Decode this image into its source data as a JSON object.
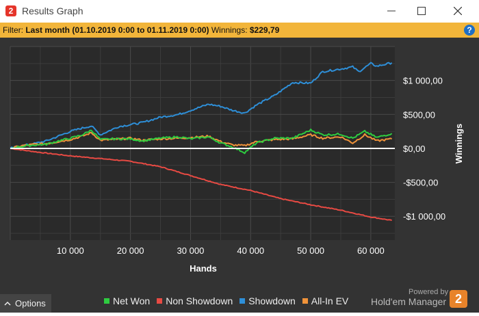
{
  "window": {
    "title": "Results Graph",
    "app_icon": "hm2-logo",
    "controls": [
      "minimize-icon",
      "maximize-icon",
      "close-icon"
    ]
  },
  "filter": {
    "label": "Filter:",
    "value": "Last month (01.10.2019 0:00 to 01.11.2019 0:00)",
    "winnings_label": "Winnings:",
    "winnings_value": "$229,79",
    "help_icon": "question-icon",
    "background": "#f2b53a"
  },
  "chart_data": {
    "type": "line",
    "xlabel": "Hands",
    "ylabel": "Winnings",
    "xlim": [
      0,
      64000
    ],
    "ylim": [
      -1350,
      1500
    ],
    "x_ticks": [
      10000,
      20000,
      30000,
      40000,
      50000,
      60000
    ],
    "x_tick_labels": [
      "10 000",
      "20 000",
      "30 000",
      "40 000",
      "50 000",
      "60 000"
    ],
    "y_ticks": [
      1000,
      500,
      0,
      -500,
      -1000
    ],
    "y_tick_labels": [
      "$1 000,00",
      "$500,00",
      "$0,00",
      "-$500,00",
      "-$1 000,00"
    ],
    "grid": true,
    "legend_position": "bottom",
    "series": [
      {
        "name": "Net Won",
        "color": "#2ecc40",
        "x": [
          0,
          2000,
          4000,
          6000,
          8000,
          10000,
          12000,
          13500,
          15000,
          17000,
          20000,
          22000,
          25000,
          28000,
          30000,
          33000,
          35000,
          37000,
          39000,
          41000,
          44000,
          47000,
          50000,
          52000,
          55000,
          57000,
          59000,
          61000,
          63500
        ],
        "values": [
          0,
          30,
          50,
          60,
          110,
          150,
          200,
          270,
          130,
          140,
          140,
          110,
          150,
          170,
          140,
          170,
          80,
          20,
          -60,
          80,
          150,
          150,
          270,
          200,
          210,
          150,
          250,
          160,
          220
        ]
      },
      {
        "name": "Non Showdown",
        "color": "#e84a43",
        "x": [
          0,
          5000,
          10000,
          15000,
          20000,
          25000,
          30000,
          35000,
          40000,
          45000,
          50000,
          55000,
          60000,
          63500
        ],
        "values": [
          0,
          -60,
          -110,
          -150,
          -190,
          -270,
          -400,
          -530,
          -620,
          -740,
          -830,
          -910,
          -1010,
          -1060
        ]
      },
      {
        "name": "Showdown",
        "color": "#2e8fd8",
        "x": [
          0,
          2000,
          4000,
          6000,
          8000,
          10000,
          12000,
          13500,
          15000,
          18000,
          20000,
          22000,
          25000,
          28000,
          30000,
          33000,
          35000,
          37000,
          39000,
          41000,
          44000,
          47000,
          50000,
          52000,
          55000,
          57000,
          58000,
          60000,
          61000,
          63500
        ],
        "values": [
          0,
          40,
          70,
          110,
          180,
          250,
          300,
          330,
          200,
          320,
          350,
          380,
          460,
          500,
          560,
          650,
          620,
          560,
          520,
          640,
          780,
          970,
          960,
          1130,
          1170,
          1200,
          1130,
          1250,
          1210,
          1260
        ]
      },
      {
        "name": "All-In EV",
        "color": "#f0933a",
        "x": [
          0,
          2000,
          4000,
          6000,
          8000,
          10000,
          12000,
          13500,
          15000,
          17000,
          20000,
          22000,
          25000,
          28000,
          30000,
          33000,
          35000,
          37000,
          39000,
          41000,
          44000,
          47000,
          50000,
          52000,
          55000,
          57000,
          59000,
          61000,
          63500
        ],
        "values": [
          0,
          40,
          60,
          70,
          100,
          130,
          180,
          230,
          120,
          130,
          150,
          120,
          140,
          150,
          160,
          180,
          100,
          50,
          40,
          100,
          130,
          140,
          200,
          150,
          170,
          80,
          200,
          110,
          140
        ]
      }
    ]
  },
  "options": {
    "label": "Options",
    "icon": "chevron-up-icon"
  },
  "legend_items": [
    {
      "name": "Net Won",
      "color": "#2ecc40"
    },
    {
      "name": "Non Showdown",
      "color": "#e84a43"
    },
    {
      "name": "Showdown",
      "color": "#2e8fd8"
    },
    {
      "name": "All-In EV",
      "color": "#f0933a"
    }
  ],
  "branding": {
    "powered_by": "Powered by",
    "product": "Hold'em Manager",
    "logo_text": "2"
  }
}
